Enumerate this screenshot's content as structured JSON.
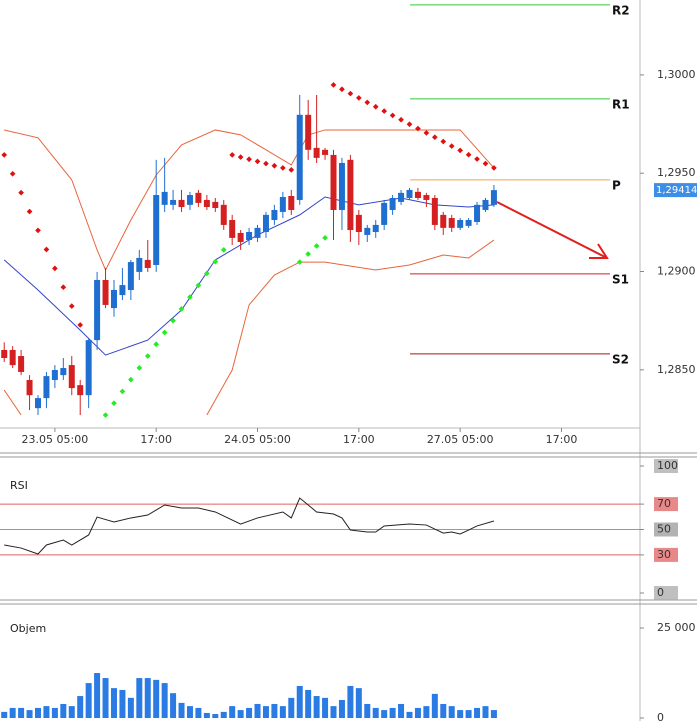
{
  "chart_data": [
    {
      "type": "candlestick",
      "x": [
        0,
        1,
        2,
        3,
        4,
        5,
        6,
        7,
        8,
        9,
        10,
        11,
        12,
        13,
        14,
        15,
        16,
        17,
        18,
        19,
        20,
        21,
        22,
        23,
        24,
        25,
        26,
        27,
        28,
        29,
        30,
        31,
        32,
        33,
        34,
        35,
        36,
        37,
        38,
        39,
        40,
        41,
        42,
        43,
        44,
        45,
        46,
        47,
        48,
        49,
        50,
        51,
        52,
        53,
        54,
        55,
        56,
        57,
        58
      ],
      "open": [
        1.28601,
        1.28601,
        1.2857,
        1.28448,
        1.28305,
        1.28356,
        1.28448,
        1.28473,
        1.28524,
        1.28422,
        1.28371,
        1.28651,
        1.28957,
        1.28814,
        1.2888,
        1.28906,
        1.28998,
        1.29059,
        1.29033,
        1.29339,
        1.29339,
        1.29364,
        1.29339,
        1.294,
        1.29364,
        1.29354,
        1.29339,
        1.29262,
        1.29196,
        1.2916,
        1.29171,
        1.29201,
        1.29262,
        1.29303,
        1.29384,
        1.29364,
        1.29797,
        1.29629,
        1.29619,
        1.29593,
        1.29313,
        1.29568,
        1.29288,
        1.29186,
        1.29201,
        1.29237,
        1.29313,
        1.29354,
        1.29374,
        1.29405,
        1.29389,
        1.29374,
        1.29288,
        1.29272,
        1.29222,
        1.29232,
        1.29252,
        1.29313,
        1.29339
      ],
      "high": [
        1.2864,
        1.2862,
        1.28601,
        1.28473,
        1.28371,
        1.28489,
        1.28524,
        1.2856,
        1.2857,
        1.28448,
        1.2866,
        1.28998,
        1.29018,
        1.28957,
        1.29018,
        1.29059,
        1.2911,
        1.2916,
        1.29568,
        1.29578,
        1.29415,
        1.29415,
        1.29405,
        1.29415,
        1.29389,
        1.29374,
        1.29364,
        1.29288,
        1.29211,
        1.29222,
        1.29237,
        1.29303,
        1.29339,
        1.29405,
        1.29415,
        1.29898,
        1.29873,
        1.29898,
        1.29629,
        1.29619,
        1.29578,
        1.29593,
        1.29313,
        1.29237,
        1.29262,
        1.29364,
        1.29389,
        1.29415,
        1.29425,
        1.29425,
        1.294,
        1.29389,
        1.29303,
        1.29288,
        1.29272,
        1.29272,
        1.29354,
        1.29374,
        1.2944
      ],
      "low": [
        1.2854,
        1.28509,
        1.28473,
        1.28295,
        1.2827,
        1.28305,
        1.28407,
        1.28448,
        1.28371,
        1.2827,
        1.28305,
        1.28601,
        1.28814,
        1.2877,
        1.28855,
        1.28855,
        1.28957,
        1.28998,
        1.28998,
        1.29303,
        1.29313,
        1.29303,
        1.29313,
        1.29328,
        1.29313,
        1.29303,
        1.29211,
        1.29135,
        1.2911,
        1.29135,
        1.2915,
        1.29171,
        1.29237,
        1.29272,
        1.29288,
        1.29339,
        1.29568,
        1.29552,
        1.29568,
        1.2916,
        1.29211,
        1.2915,
        1.29135,
        1.2915,
        1.29171,
        1.29211,
        1.29288,
        1.29339,
        1.29364,
        1.29364,
        1.29328,
        1.29211,
        1.29186,
        1.29201,
        1.29211,
        1.29222,
        1.29237,
        1.29303,
        1.29328
      ],
      "close": [
        1.2856,
        1.28524,
        1.28489,
        1.28371,
        1.28356,
        1.28468,
        1.28499,
        1.28509,
        1.28407,
        1.28371,
        1.28651,
        1.28957,
        1.2883,
        1.28906,
        1.28931,
        1.29048,
        1.29069,
        1.29018,
        1.29389,
        1.29405,
        1.29364,
        1.29328,
        1.29389,
        1.29349,
        1.29328,
        1.29323,
        1.29237,
        1.29171,
        1.2915,
        1.29201,
        1.29222,
        1.29288,
        1.29313,
        1.29379,
        1.29313,
        1.29797,
        1.29619,
        1.29578,
        1.29593,
        1.29313,
        1.29552,
        1.29211,
        1.29201,
        1.29222,
        1.29237,
        1.29349,
        1.29374,
        1.294,
        1.29415,
        1.29374,
        1.29364,
        1.29237,
        1.29222,
        1.29222,
        1.29262,
        1.29262,
        1.29339,
        1.29364,
        1.29414
      ],
      "up_color": "#1f6fd1",
      "down_color": "#d42020",
      "xlim": [
        -0.5,
        75.3
      ],
      "ylim": [
        1.28204,
        1.30381
      ],
      "xticks": [
        {
          "value": 6,
          "label": "23.05 05:00"
        },
        {
          "value": 18,
          "label": "17:00"
        },
        {
          "value": 30,
          "label": "24.05 05:00"
        },
        {
          "value": 42,
          "label": "17:00"
        },
        {
          "value": 54,
          "label": "27.05 05:00"
        },
        {
          "value": 66,
          "label": "17:00"
        }
      ],
      "yticks": [
        {
          "value": 1.3,
          "label": "1,3000"
        },
        {
          "value": 1.295,
          "label": "1,2950"
        },
        {
          "value": 1.29,
          "label": "1,2900"
        },
        {
          "value": 1.285,
          "label": "1,2850"
        }
      ],
      "overlays": [
        {
          "kind": "line",
          "color": "#e8643c",
          "x": [
            0,
            4,
            8,
            11,
            12,
            15,
            18,
            21,
            25,
            28,
            31,
            34,
            36,
            38,
            44,
            54,
            58
          ],
          "values": [
            1.2972,
            1.2968,
            1.29466,
            1.2911,
            1.29008,
            1.29262,
            1.29491,
            1.29644,
            1.2972,
            1.29695,
            1.29619,
            1.29542,
            1.29695,
            1.2972,
            1.2972,
            1.2972,
            1.29527
          ]
        },
        {
          "kind": "line",
          "color": "#e8643c",
          "x": [
            0,
            2,
            13,
            24,
            27,
            29,
            32,
            35,
            38,
            44,
            48,
            52,
            55,
            58
          ],
          "values": [
            1.28397,
            1.2827,
            null,
            1.2827,
            1.28499,
            1.2883,
            1.28982,
            1.29048,
            1.29048,
            1.29008,
            1.29033,
            1.29084,
            1.29069,
            1.2916
          ]
        },
        {
          "kind": "line",
          "color": "#3344cc",
          "x": [
            0,
            4,
            9,
            12,
            17,
            21,
            25,
            30,
            35,
            38,
            42,
            47,
            51,
            55,
            58
          ],
          "values": [
            1.29059,
            1.28906,
            1.28702,
            1.28575,
            1.28651,
            1.28804,
            1.29059,
            1.29186,
            1.29288,
            1.29379,
            1.29339,
            1.29374,
            1.29339,
            1.29328,
            1.29339
          ]
        },
        {
          "kind": "dots",
          "color": "#e01010",
          "x": [
            0,
            1,
            2,
            3,
            4,
            5,
            6,
            7,
            8,
            9
          ],
          "values": [
            1.29593,
            1.29497,
            1.29401,
            1.29305,
            1.29209,
            1.29112,
            1.29016,
            1.2892,
            1.28824,
            1.28728
          ]
        },
        {
          "kind": "dots",
          "color": "#22ee22",
          "x": [
            12,
            13,
            14,
            15,
            16,
            17,
            18,
            19,
            20,
            21,
            22,
            23,
            24,
            25,
            26
          ],
          "values": [
            1.2827,
            1.2833,
            1.2839,
            1.2845,
            1.2851,
            1.2857,
            1.2863,
            1.2869,
            1.2875,
            1.2881,
            1.2887,
            1.2893,
            1.2899,
            1.2905,
            1.2911
          ]
        },
        {
          "kind": "dots",
          "color": "#e01010",
          "x": [
            27,
            28,
            29,
            30,
            31,
            32,
            33,
            34
          ],
          "values": [
            1.29593,
            1.29582,
            1.29571,
            1.2956,
            1.29549,
            1.29538,
            1.29527,
            1.29517
          ]
        },
        {
          "kind": "dots",
          "color": "#22ee22",
          "x": [
            35,
            36,
            37,
            38
          ],
          "values": [
            1.29048,
            1.29089,
            1.2913,
            1.29171
          ]
        },
        {
          "kind": "dots",
          "color": "#e01010",
          "x": [
            39,
            40,
            41,
            42,
            43,
            44,
            45,
            46,
            47,
            48,
            49,
            50,
            51,
            52,
            53,
            54,
            55,
            56,
            57,
            58
          ],
          "values": [
            1.29949,
            1.29927,
            1.29905,
            1.29883,
            1.2986,
            1.29838,
            1.29816,
            1.29794,
            1.29772,
            1.29749,
            1.29727,
            1.29705,
            1.29683,
            1.29661,
            1.29638,
            1.29616,
            1.29594,
            1.29572,
            1.29549,
            1.29527
          ]
        }
      ],
      "pivots": [
        {
          "name": "R2",
          "value": 1.30356,
          "color": "#33cc33"
        },
        {
          "name": "R1",
          "value": 1.29878,
          "color": "#33cc33"
        },
        {
          "name": "P",
          "value": 1.29466,
          "color": "#f0a050"
        },
        {
          "name": "S1",
          "value": 1.28988,
          "color": "#d42020"
        },
        {
          "name": "S2",
          "value": 1.28581,
          "color": "#a01818"
        }
      ],
      "last_price": {
        "value": 1.29414,
        "label": "1,29414"
      }
    },
    {
      "type": "line",
      "title": "RSI",
      "color": "#222222",
      "x": [
        0,
        2,
        4,
        5,
        7,
        8,
        10,
        11,
        13,
        15,
        17,
        19,
        21,
        23,
        25,
        28,
        30,
        33,
        34,
        35,
        37,
        39,
        40,
        41,
        43,
        44,
        45,
        48,
        50,
        52,
        53,
        54,
        55,
        56,
        58
      ],
      "values": [
        37.8,
        35.4,
        30.7,
        37.8,
        41.7,
        37.8,
        45.7,
        59.8,
        55.9,
        59.1,
        61.4,
        69.3,
        66.9,
        66.9,
        63.8,
        54.3,
        59.1,
        63.8,
        59.1,
        74.8,
        63.8,
        62.2,
        59.1,
        49.6,
        48.0,
        48.0,
        52.8,
        54.3,
        53.5,
        47.2,
        48.0,
        46.5,
        49.6,
        52.8,
        56.7
      ],
      "xlim": [
        -0.5,
        75.3
      ],
      "ylim": [
        -5.5,
        106.3
      ],
      "yticks": [
        100,
        70,
        50,
        30,
        0
      ],
      "levels": [
        {
          "value": 70,
          "color": "#e06060"
        },
        {
          "value": 50,
          "color": "#999999"
        },
        {
          "value": 30,
          "color": "#e06060"
        }
      ]
    },
    {
      "type": "bar",
      "title": "Objem",
      "color": "#2a7be4",
      "x": [
        0,
        1,
        2,
        3,
        4,
        5,
        6,
        7,
        8,
        9,
        10,
        11,
        12,
        13,
        14,
        15,
        16,
        17,
        18,
        19,
        20,
        21,
        22,
        23,
        24,
        25,
        26,
        27,
        28,
        29,
        30,
        31,
        32,
        33,
        34,
        35,
        36,
        37,
        38,
        39,
        40,
        41,
        42,
        43,
        44,
        45,
        46,
        47,
        48,
        49,
        50,
        51,
        52,
        53,
        54,
        55,
        56,
        57,
        58
      ],
      "values": [
        1700,
        2800,
        2800,
        2200,
        2800,
        3300,
        2800,
        3900,
        3300,
        6100,
        9700,
        12500,
        11100,
        8300,
        7800,
        5600,
        11100,
        11100,
        10600,
        9700,
        6900,
        4200,
        3300,
        2800,
        1400,
        1100,
        1700,
        3300,
        2200,
        2800,
        3900,
        3300,
        3900,
        3300,
        5600,
        8900,
        7800,
        6100,
        5600,
        3300,
        5000,
        8900,
        8300,
        3900,
        2800,
        2200,
        2800,
        3900,
        1700,
        2800,
        3300,
        6700,
        3900,
        3300,
        2200,
        2200,
        2800,
        3300,
        2200
      ],
      "xlim": [
        -0.5,
        75.3
      ],
      "ylim": [
        0,
        31400
      ],
      "yticks": [
        {
          "value": 25000,
          "label": "25 000"
        },
        0
      ]
    }
  ]
}
